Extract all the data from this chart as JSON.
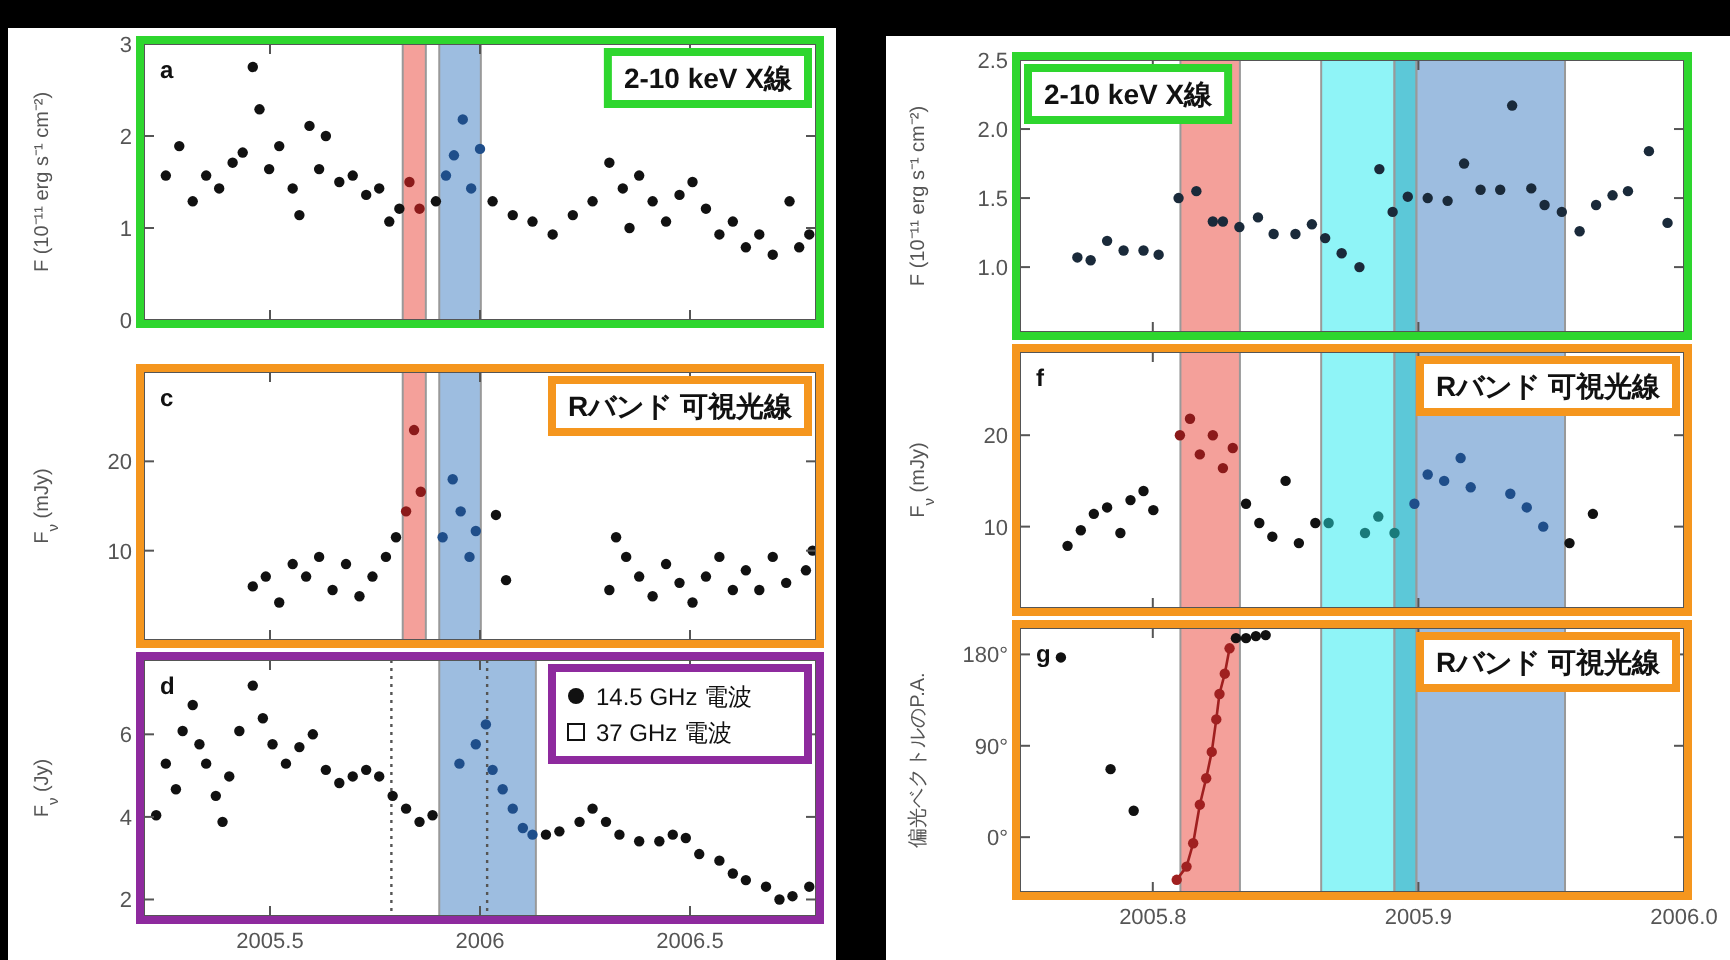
{
  "chart_data": [
    {
      "type": "scatter",
      "title": "2-10 keV X線",
      "ylabel": "F (10⁻¹¹ erg s⁻¹ cm⁻²)",
      "annotations": [
        "a"
      ],
      "xlim": [
        2005.2,
        2006.8
      ],
      "xticks": [
        2005.5,
        2006,
        2006.5
      ],
      "ylim": [
        0,
        3
      ],
      "yticks": [
        0,
        1,
        2,
        3
      ],
      "tick_labels": "y",
      "marker": "circle",
      "bands": [
        {
          "axis": "x",
          "from": 2005.816,
          "to": 2005.871,
          "color": "#f4a09a"
        },
        {
          "axis": "x",
          "from": 2005.903,
          "to": 2006.002,
          "color": "#9dbde0"
        }
      ],
      "series": [
        {
          "color": "#111111",
          "x": [
            2005.252,
            2005.284,
            2005.316,
            2005.348,
            2005.379,
            2005.411,
            2005.435,
            2005.459,
            2005.475,
            2005.498,
            2005.522,
            2005.554,
            2005.57,
            2005.594,
            2005.617,
            2005.633,
            2005.665,
            2005.697,
            2005.729,
            2005.76,
            2005.784,
            2005.808,
            2005.895,
            2006.03,
            2006.078,
            2006.125,
            2006.173,
            2006.221,
            2006.268,
            2006.308,
            2006.34,
            2006.356,
            2006.379,
            2006.411,
            2006.443,
            2006.475,
            2006.506,
            2006.538,
            2006.57,
            2006.602,
            2006.633,
            2006.665,
            2006.697,
            2006.737,
            2006.76,
            2006.784
          ],
          "values": [
            1.57,
            1.89,
            1.29,
            1.57,
            1.43,
            1.71,
            1.82,
            2.75,
            2.29,
            1.64,
            1.89,
            1.43,
            1.14,
            2.11,
            1.64,
            2.0,
            1.5,
            1.57,
            1.36,
            1.43,
            1.07,
            1.21,
            1.29,
            1.29,
            1.14,
            1.07,
            0.93,
            1.14,
            1.29,
            1.71,
            1.43,
            1.0,
            1.57,
            1.29,
            1.07,
            1.36,
            1.5,
            1.21,
            0.93,
            1.07,
            0.79,
            0.93,
            0.71,
            1.29,
            0.79,
            0.93
          ]
        },
        {
          "color": "#8b1a1a",
          "x": [
            2005.832,
            2005.856
          ],
          "values": [
            1.5,
            1.21
          ]
        },
        {
          "color": "#1f4e8a",
          "x": [
            2005.919,
            2005.938,
            2005.959,
            2005.979,
            2006.0
          ],
          "values": [
            1.57,
            1.79,
            2.18,
            1.43,
            1.86
          ]
        }
      ]
    },
    {
      "type": "scatter",
      "title": "Rバンド 可視光線",
      "ylabel": "F$_{ν}$ (mJy)",
      "annotations": [
        "c"
      ],
      "xlim": [
        2005.2,
        2006.8
      ],
      "xticks": [
        2005.5,
        2006,
        2006.5
      ],
      "ylim": [
        0,
        30
      ],
      "yticks": [
        10,
        20
      ],
      "tick_labels": "y",
      "marker": "circle",
      "bands": [
        {
          "axis": "x",
          "from": 2005.816,
          "to": 2005.871,
          "color": "#f4a09a"
        },
        {
          "axis": "x",
          "from": 2005.903,
          "to": 2006.002,
          "color": "#9dbde0"
        }
      ],
      "series": [
        {
          "color": "#111111",
          "x": [
            2005.459,
            2005.49,
            2005.522,
            2005.554,
            2005.586,
            2005.617,
            2005.649,
            2005.681,
            2005.713,
            2005.744,
            2005.776,
            2005.8,
            2006.038,
            2006.062,
            2006.308,
            2006.324,
            2006.348,
            2006.379,
            2006.411,
            2006.443,
            2006.475,
            2006.506,
            2006.538,
            2006.57,
            2006.602,
            2006.633,
            2006.665,
            2006.697,
            2006.729,
            2006.776,
            2006.792
          ],
          "values": [
            6.0,
            7.1,
            4.2,
            8.5,
            7.1,
            9.3,
            5.6,
            8.5,
            4.9,
            7.1,
            9.3,
            11.5,
            14.0,
            6.7,
            5.6,
            11.5,
            9.3,
            7.1,
            4.9,
            8.5,
            6.4,
            4.2,
            7.1,
            9.3,
            5.6,
            7.8,
            5.6,
            9.3,
            6.4,
            7.8,
            10.0
          ]
        },
        {
          "color": "#8b1a1a",
          "x": [
            2005.824,
            2005.843,
            2005.859
          ],
          "values": [
            14.4,
            23.5,
            16.6
          ]
        },
        {
          "color": "#1f4e8a",
          "x": [
            2005.911,
            2005.935,
            2005.954,
            2005.975,
            2005.99
          ],
          "values": [
            11.5,
            18.0,
            14.4,
            9.3,
            12.2
          ]
        }
      ]
    },
    {
      "type": "scatter",
      "ylabel": "F$_{ν}$ (Jy)",
      "annotations": [
        "d"
      ],
      "xlim": [
        2005.2,
        2006.8
      ],
      "xticks": [
        2005.5,
        2006,
        2006.5
      ],
      "ylim": [
        1.6,
        7.8
      ],
      "yticks": [
        2,
        4,
        6
      ],
      "legend": "top right",
      "marker": "circle",
      "bands": [
        {
          "axis": "x",
          "from": 2005.903,
          "to": 2006.133,
          "color": "#9dbde0"
        }
      ],
      "ref_lines": [
        {
          "axis": "x",
          "value": 2005.789,
          "line_style": "dotted",
          "color": "#555555"
        },
        {
          "axis": "x",
          "value": 2006.017,
          "line_style": "dotted",
          "color": "#555555"
        }
      ],
      "series": [
        {
          "name": "14.5 GHz 電波",
          "color": "#111111",
          "x": [
            2005.229,
            2005.252,
            2005.276,
            2005.292,
            2005.316,
            2005.332,
            2005.348,
            2005.371,
            2005.387,
            2005.403,
            2005.427,
            2005.459,
            2005.483,
            2005.506,
            2005.538,
            2005.57,
            2005.602,
            2005.633,
            2005.665,
            2005.697,
            2005.729,
            2005.76,
            2005.792,
            2005.824,
            2005.856,
            2005.887,
            2006.157,
            2006.189,
            2006.237,
            2006.268,
            2006.3,
            2006.332,
            2006.379,
            2006.427,
            2006.459,
            2006.49,
            2006.522,
            2006.57,
            2006.602,
            2006.633,
            2006.681,
            2006.713,
            2006.744,
            2006.784
          ],
          "values": [
            4.04,
            5.29,
            4.67,
            6.08,
            6.71,
            5.76,
            5.29,
            4.51,
            3.88,
            4.98,
            6.08,
            7.18,
            6.39,
            5.76,
            5.29,
            5.69,
            6.0,
            5.14,
            4.82,
            4.98,
            5.14,
            4.98,
            4.51,
            4.2,
            3.88,
            4.04,
            3.57,
            3.65,
            3.88,
            4.2,
            3.88,
            3.57,
            3.41,
            3.41,
            3.57,
            3.49,
            3.1,
            2.94,
            2.63,
            2.47,
            2.31,
            2.0,
            2.08,
            2.31
          ]
        },
        {
          "color": "#1f4e8a",
          "x": [
            2005.951,
            2005.99,
            2006.014,
            2006.03,
            2006.054,
            2006.078,
            2006.102,
            2006.125
          ],
          "values": [
            5.29,
            5.76,
            6.24,
            5.14,
            4.67,
            4.2,
            3.73,
            3.57
          ]
        },
        {
          "name": "37 GHz 電波",
          "color": "#111111",
          "marker": "square"
        }
      ]
    },
    {
      "type": "scatter",
      "title": "2-10 keV X線",
      "ylabel": "F (10⁻¹¹ erg s⁻¹ cm⁻²)",
      "xlim": [
        2005.75,
        2006.0
      ],
      "xticks": [
        2005.8,
        2005.9,
        2006
      ],
      "ylim": [
        0.53,
        2.5
      ],
      "yticks": [
        {
          "value": 1,
          "label": "1.0"
        },
        1.5,
        {
          "value": 2,
          "label": "2.0"
        },
        2.5
      ],
      "tick_labels": "y",
      "marker": "circle",
      "bands": [
        {
          "axis": "x",
          "from": 2005.8104,
          "to": 2005.8328,
          "color": "#f4a09a"
        },
        {
          "axis": "x",
          "from": 2005.8634,
          "to": 2005.891,
          "color": "#8ff4f7"
        },
        {
          "axis": "x",
          "from": 2005.891,
          "to": 2005.8993,
          "color": "#5cc8d8"
        },
        {
          "axis": "x",
          "from": 2005.8993,
          "to": 2005.9552,
          "color": "#9dbde0"
        }
      ],
      "series": [
        {
          "color": "#1a2a3a",
          "x": [
            2005.7716,
            2005.7766,
            2005.7828,
            2005.789,
            2005.7965,
            2005.8022,
            2005.8097,
            2005.8164,
            2005.8226,
            2005.8264,
            2005.8326,
            2005.8396,
            2005.8455,
            2005.8537,
            2005.8599,
            2005.8649,
            2005.8711,
            2005.8778,
            2005.8853,
            2005.8903,
            2005.896,
            2005.9035,
            2005.911,
            2005.9172,
            2005.9234,
            2005.9308,
            2005.9353,
            2005.9425,
            2005.9475,
            2005.954,
            2005.9607,
            2005.9669,
            2005.9731,
            2005.9789,
            2005.9868,
            2005.9938
          ],
          "values": [
            1.07,
            1.05,
            1.19,
            1.12,
            1.12,
            1.09,
            1.5,
            1.55,
            1.33,
            1.33,
            1.29,
            1.36,
            1.24,
            1.24,
            1.31,
            1.21,
            1.1,
            1.0,
            1.71,
            1.4,
            1.51,
            1.5,
            1.48,
            1.75,
            1.56,
            1.56,
            2.17,
            1.57,
            1.45,
            1.4,
            1.26,
            1.45,
            1.52,
            1.55,
            1.84,
            1.32
          ]
        }
      ]
    },
    {
      "type": "scatter",
      "title": "Rバンド 可視光線",
      "ylabel": "F$_{ν}$ (mJy)",
      "annotations": [
        "f"
      ],
      "xlim": [
        2005.75,
        2006.0
      ],
      "xticks": [
        2005.8,
        2005.9,
        2006
      ],
      "ylim": [
        1.1,
        29.1
      ],
      "yticks": [
        10,
        20
      ],
      "tick_labels": "y",
      "marker": "circle",
      "bands": [
        {
          "axis": "x",
          "from": 2005.8104,
          "to": 2005.8328,
          "color": "#f4a09a"
        },
        {
          "axis": "x",
          "from": 2005.8634,
          "to": 2005.891,
          "color": "#8ff4f7"
        },
        {
          "axis": "x",
          "from": 2005.891,
          "to": 2005.8993,
          "color": "#5cc8d8"
        },
        {
          "axis": "x",
          "from": 2005.8993,
          "to": 2005.9552,
          "color": "#9dbde0"
        }
      ],
      "series": [
        {
          "color": "#111111",
          "x": [
            2005.7679,
            2005.7729,
            2005.7778,
            2005.7828,
            2005.7878,
            2005.7916,
            2005.7965,
            2005.8002,
            2005.8351,
            2005.8401,
            2005.845,
            2005.85,
            2005.855,
            2005.8612,
            2005.9569,
            2005.9657
          ],
          "values": [
            7.9,
            9.6,
            11.4,
            12.1,
            9.3,
            12.9,
            13.9,
            11.8,
            12.5,
            10.4,
            8.9,
            15.0,
            8.2,
            10.4,
            8.2,
            11.4
          ]
        },
        {
          "color": "#8b1a1a",
          "x": [
            2005.8102,
            2005.814,
            2005.8177,
            2005.8226,
            2005.8264,
            2005.8301
          ],
          "values": [
            20.0,
            21.8,
            17.9,
            20.0,
            16.4,
            18.6
          ]
        },
        {
          "color": "#1a7a7a",
          "x": [
            2005.8662,
            2005.8799,
            2005.8849,
            2005.891
          ],
          "values": [
            10.4,
            9.3,
            11.1,
            9.3
          ]
        },
        {
          "color": "#1f4e8a",
          "x": [
            2005.8985,
            2005.9035,
            2005.9097,
            2005.9159,
            2005.9197,
            2005.9346,
            2005.9408,
            2005.947
          ],
          "values": [
            12.5,
            15.7,
            15.0,
            17.5,
            14.3,
            13.6,
            12.1,
            10.0
          ]
        }
      ]
    },
    {
      "type": "scatter",
      "title": "Rバンド 可視光線",
      "ylabel": "偏光ベクトルのP.A.",
      "annotations": [
        "g"
      ],
      "xlim": [
        2005.75,
        2006.0
      ],
      "xticks": [
        2005.8,
        2005.9,
        {
          "value": 2006,
          "label": "2006.0"
        }
      ],
      "ylim": [
        -54,
        206
      ],
      "yticks": [
        {
          "value": 0,
          "label": "0°"
        },
        {
          "value": 90,
          "label": "90°"
        },
        {
          "value": 180,
          "label": "180°"
        }
      ],
      "marker": "circle",
      "bands": [
        {
          "axis": "x",
          "from": 2005.8104,
          "to": 2005.8328,
          "color": "#f4a09a"
        },
        {
          "axis": "x",
          "from": 2005.8634,
          "to": 2005.891,
          "color": "#8ff4f7"
        },
        {
          "axis": "x",
          "from": 2005.891,
          "to": 2005.8993,
          "color": "#5cc8d8"
        },
        {
          "axis": "x",
          "from": 2005.8993,
          "to": 2005.9552,
          "color": "#9dbde0"
        }
      ],
      "series": [
        {
          "color": "#111111",
          "x": [
            2005.7654,
            2005.7841,
            2005.7928,
            2005.8313,
            2005.8351,
            2005.8388,
            2005.8425
          ],
          "values": [
            177,
            67,
            26,
            196,
            196,
            198,
            199
          ]
        },
        {
          "type": "line",
          "color": "#a02020",
          "x": [
            2005.809,
            2005.8127,
            2005.8152,
            2005.8177,
            2005.8201,
            2005.8222,
            2005.8239,
            2005.8251,
            2005.8271,
            2005.8289
          ],
          "values": [
            -42,
            -29,
            -6,
            32,
            58,
            84,
            116,
            141,
            161,
            186
          ]
        }
      ]
    }
  ]
}
